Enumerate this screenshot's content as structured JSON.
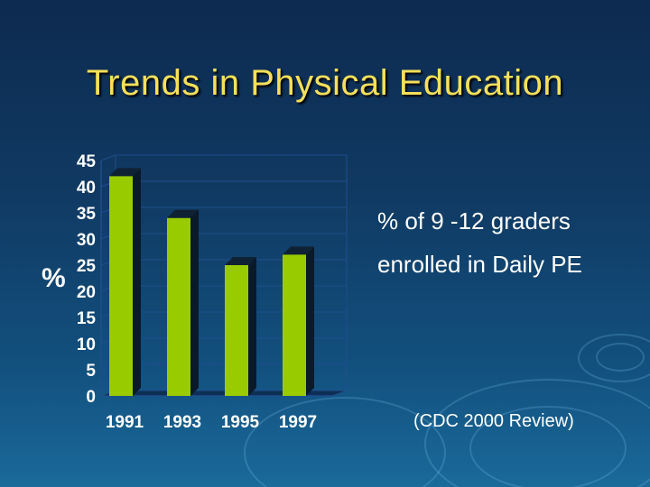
{
  "slide": {
    "title": "Trends in Physical Education",
    "caption_line1": "% of 9 -12 graders",
    "caption_line2": "enrolled in Daily PE",
    "source": "(CDC 2000 Review)"
  },
  "colors": {
    "background_top": "#0d2a4f",
    "background_bottom": "#1a6a9a",
    "title": "#f6e05a",
    "bar_front": "#99cc00",
    "bar_side": "#0a1a2a",
    "text": "#ffffff"
  },
  "chart_data": {
    "type": "bar",
    "title": "",
    "xlabel": "",
    "ylabel": "%",
    "categories": [
      "1991",
      "1993",
      "1995",
      "1997"
    ],
    "values": [
      42,
      34,
      25,
      27
    ],
    "ylim": [
      0,
      45
    ],
    "yticks": [
      0,
      5,
      10,
      15,
      20,
      25,
      30,
      35,
      40,
      45
    ],
    "grid": true,
    "legend": "none",
    "style": "3d"
  }
}
